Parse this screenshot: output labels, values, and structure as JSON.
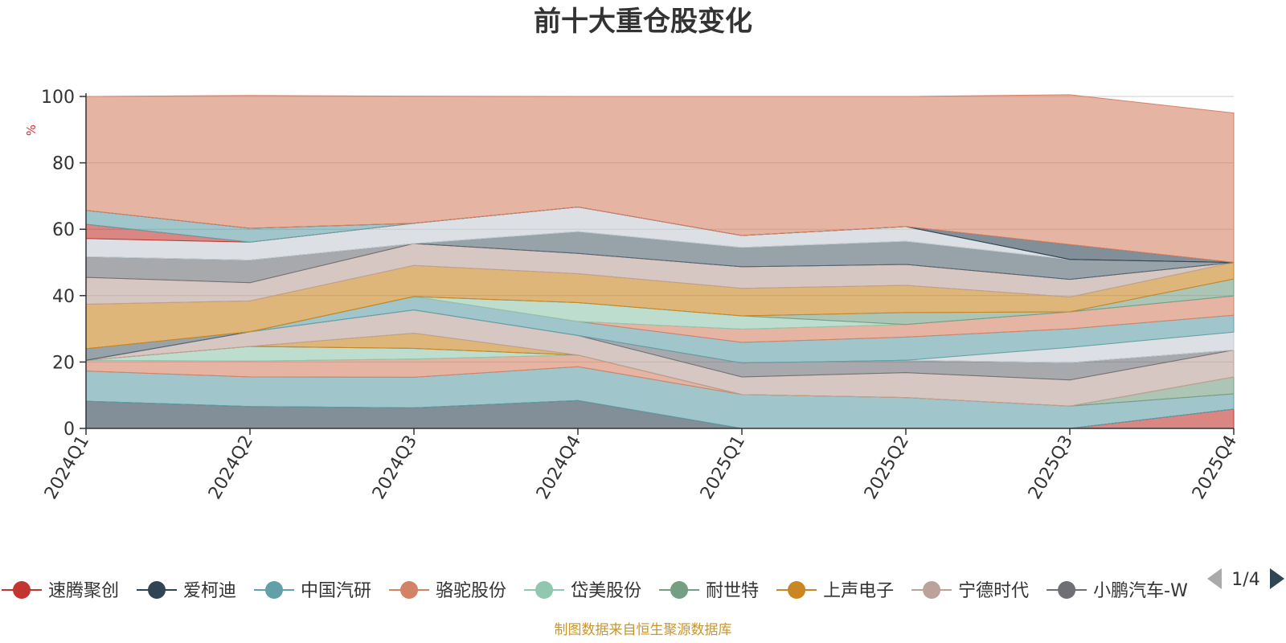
{
  "chart_data": {
    "type": "area",
    "stacked": true,
    "title": "前十大重仓股变化",
    "ylabel": "%",
    "ylim": [
      0,
      100
    ],
    "yticks": [
      0,
      20,
      40,
      60,
      80,
      100
    ],
    "categories": [
      "2024Q1",
      "2024Q2",
      "2024Q3",
      "2024Q4",
      "2025Q1",
      "2025Q2",
      "2025Q3",
      "2025Q4"
    ],
    "series": [
      {
        "name": "速腾聚创",
        "color": "#c23531",
        "values": [
          0,
          0,
          0,
          0,
          0,
          0,
          0,
          5.8
        ]
      },
      {
        "name": "爱柯迪",
        "color": "#2f4554",
        "values": [
          8.2,
          6.6,
          6.2,
          8.4,
          0,
          0,
          0,
          0
        ]
      },
      {
        "name": "中国汽研",
        "color": "#61a0a8",
        "values": [
          9.1,
          8.9,
          9.2,
          10.2,
          10.2,
          9.3,
          6.7,
          4.6
        ]
      },
      {
        "name": "骆驼股份",
        "color": "#d48265",
        "values": [
          3.2,
          4.8,
          5.5,
          3.5,
          0,
          0,
          0,
          0
        ]
      },
      {
        "name": "岱美股份",
        "color": "#91c7ae",
        "values": [
          0,
          4.4,
          3.2,
          0,
          0,
          0,
          0,
          0
        ]
      },
      {
        "name": "耐世特",
        "color": "#749f83",
        "values": [
          0,
          0,
          0,
          0,
          0,
          0,
          0,
          5.1
        ]
      },
      {
        "name": "上声电子",
        "color": "#ca8622",
        "values": [
          0,
          0,
          4.6,
          0,
          0,
          0,
          0,
          0
        ]
      },
      {
        "name": "宁德时代",
        "color": "#bda29a",
        "values": [
          0,
          4.4,
          7.0,
          5.9,
          5.3,
          7.5,
          7.9,
          8.1
        ]
      },
      {
        "name": "小鹏汽车-W",
        "color": "#6e7074",
        "values": [
          0,
          0,
          0,
          0,
          4.2,
          3.7,
          5.2,
          0
        ]
      },
      {
        "name": "",
        "color": "#546570",
        "values": [
          3.5,
          0,
          0,
          0,
          0,
          0,
          0,
          0
        ]
      },
      {
        "name": "",
        "color": "#c4ccd3",
        "values": [
          0,
          0,
          0,
          0,
          0,
          0,
          4.6,
          5.4
        ]
      },
      {
        "name": "",
        "color": "#61a0a8",
        "values": [
          0,
          0,
          4.0,
          4.2,
          6.2,
          7.0,
          5.6,
          5.1
        ]
      },
      {
        "name": "",
        "color": "#d48265",
        "values": [
          0,
          0,
          0,
          0,
          4.0,
          3.8,
          5.1,
          5.8
        ]
      },
      {
        "name": "",
        "color": "#91c7ae",
        "values": [
          0,
          0,
          0,
          5.7,
          4.0,
          0,
          0,
          0
        ]
      },
      {
        "name": "",
        "color": "#749f83",
        "values": [
          0,
          0,
          0,
          0,
          0,
          3.6,
          0,
          5.1
        ]
      },
      {
        "name": "",
        "color": "#ca8622",
        "values": [
          13.4,
          9.3,
          9.4,
          8.7,
          8.3,
          8.2,
          4.5,
          5.0
        ]
      },
      {
        "name": "",
        "color": "#bda29a",
        "values": [
          8.1,
          5.5,
          6.6,
          6.1,
          6.5,
          6.3,
          5.3,
          0
        ]
      },
      {
        "name": "",
        "color": "#6e7074",
        "values": [
          6.2,
          6.8,
          0,
          0,
          0,
          0,
          0,
          0
        ]
      },
      {
        "name": "",
        "color": "#546570",
        "values": [
          0,
          0,
          0,
          6.6,
          5.8,
          7.0,
          6.0,
          0
        ]
      },
      {
        "name": "",
        "color": "#c4ccd3",
        "values": [
          5.5,
          5.4,
          6.1,
          7.4,
          3.6,
          4.4,
          0,
          0
        ]
      },
      {
        "name": "",
        "color": "#c23531",
        "values": [
          4.3,
          0,
          0,
          0,
          0,
          0,
          0,
          0
        ]
      },
      {
        "name": "",
        "color": "#61a0a8",
        "values": [
          4.2,
          4.2,
          0,
          0,
          0,
          0,
          0,
          0
        ]
      },
      {
        "name": "",
        "color": "#2f4554",
        "values": [
          0,
          0,
          0,
          0,
          0,
          0,
          4.5,
          0
        ]
      },
      {
        "name": "",
        "color": "#d48265",
        "values": [
          34.3,
          40.0,
          38.3,
          33.3,
          41.9,
          39.2,
          45.1,
          45.0
        ]
      }
    ]
  },
  "legend": {
    "items": [
      {
        "name": "速腾聚创",
        "color": "#c23531"
      },
      {
        "name": "爱柯迪",
        "color": "#2f4554"
      },
      {
        "name": "中国汽研",
        "color": "#61a0a8"
      },
      {
        "name": "骆驼股份",
        "color": "#d48265"
      },
      {
        "name": "岱美股份",
        "color": "#91c7ae"
      },
      {
        "name": "耐世特",
        "color": "#749f83"
      },
      {
        "name": "上声电子",
        "color": "#ca8622"
      },
      {
        "name": "宁德时代",
        "color": "#bda29a"
      },
      {
        "name": "小鹏汽车-W",
        "color": "#6e7074"
      }
    ],
    "page": "1/4"
  },
  "source": "制图数据来自恒生聚源数据库"
}
